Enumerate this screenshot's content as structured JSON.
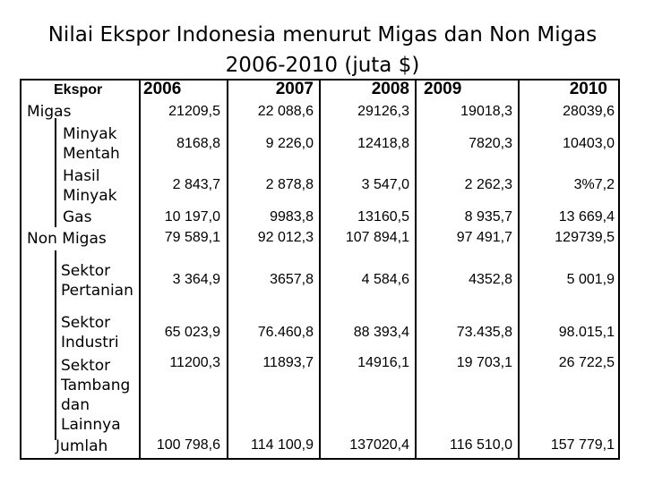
{
  "title": {
    "line1": "Nilai Ekspor Indonesia menurut Migas dan Non Migas",
    "line2": "2006-2010 (juta $)"
  },
  "table": {
    "header": {
      "category": "Ekspor",
      "years": [
        "2006",
        "2007",
        "2008",
        "2009",
        "2010"
      ]
    },
    "rows": [
      {
        "label": "Migas",
        "values": [
          "21209,5",
          "22 088,6",
          "29126,3",
          "19018,3",
          "28039,6"
        ]
      },
      {
        "label": "Minyak Mentah",
        "values": [
          "8168,8",
          "9 226,0",
          "12418,8",
          "7820,3",
          "10403,0"
        ]
      },
      {
        "label": "Hasil Minyak",
        "values": [
          "2 843,7",
          "2 878,8",
          "3 547,0",
          "2 262,3",
          "3%7,2"
        ]
      },
      {
        "label": "Gas",
        "values": [
          "10 197,0",
          "9983,8",
          "13160,5",
          "8 935,7",
          "13 669,4"
        ]
      },
      {
        "label": "Non Migas",
        "values": [
          "79 589,1",
          "92 012,3",
          "107 894,1",
          "97 491,7",
          "129739,5"
        ]
      },
      {
        "label": "Sektor Pertanian",
        "values": [
          "3 364,9",
          "3657,8",
          "4 584,6",
          "4352,8",
          "5 001,9"
        ]
      },
      {
        "label": "Sektor Industri",
        "values": [
          "65 023,9",
          "76.460,8",
          "88 393,4",
          "73.435,8",
          "98.015,1"
        ]
      },
      {
        "label": "Sektor Tambang dan Lainnya",
        "values": [
          "11200,3",
          "11893,7",
          "14916,1",
          "19 703,1",
          "26 722,5"
        ]
      },
      {
        "label": "Jumlah",
        "values": [
          "100 798,6",
          "114 100,9",
          "137020,4",
          "116 510,0",
          "157 779,1"
        ]
      }
    ]
  }
}
